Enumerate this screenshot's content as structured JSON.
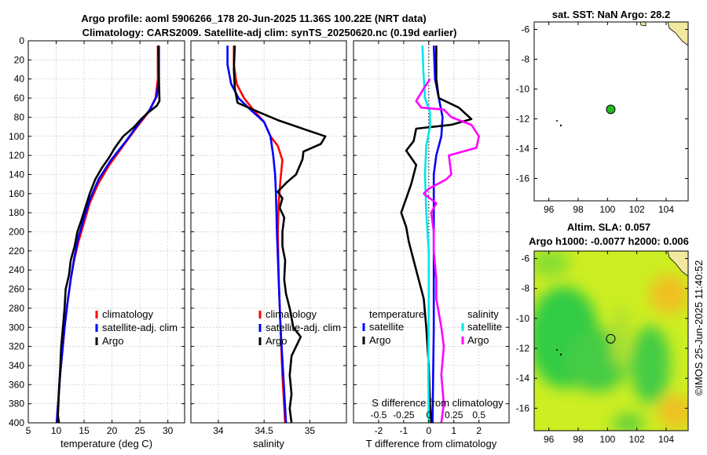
{
  "header": {
    "title_line1": "Argo profile: aoml 5906266_178 20-Jun-2025 11.36S 100.22E (NRT data)",
    "title_line2": "Climatology: CARS2009. Satellite-adj clim: synTS_20250620.nc (0.19d earlier)"
  },
  "colors": {
    "climatology": "#ff0000",
    "satellite": "#0000ff",
    "argo": "#000000",
    "salinity_satellite": "#00e5ee",
    "salinity_argo": "#ff00ff",
    "land": "#f0e8a0"
  },
  "chart_data": [
    {
      "id": "temperature",
      "type": "line",
      "xlabel": "temperature (deg C)",
      "ylabel": "",
      "xlim": [
        5,
        33
      ],
      "xticks": [
        5,
        10,
        15,
        20,
        25,
        30
      ],
      "ylim": [
        400,
        0
      ],
      "yticks": [
        0,
        20,
        40,
        60,
        80,
        100,
        120,
        140,
        160,
        180,
        200,
        220,
        240,
        260,
        280,
        300,
        320,
        340,
        360,
        380,
        400
      ],
      "legend": [
        "climatology",
        "satellite-adj. clim",
        "Argo"
      ],
      "series": [
        {
          "name": "climatology",
          "color": "#ff0000",
          "points": [
            [
              28.2,
              5
            ],
            [
              28.2,
              40
            ],
            [
              27.8,
              60
            ],
            [
              26.5,
              75
            ],
            [
              24.5,
              90
            ],
            [
              22,
              110
            ],
            [
              19.5,
              130
            ],
            [
              17.5,
              150
            ],
            [
              16,
              170
            ],
            [
              15,
              190
            ],
            [
              14,
              210
            ],
            [
              13.2,
              230
            ],
            [
              12.6,
              250
            ],
            [
              12,
              275
            ],
            [
              11.5,
              300
            ],
            [
              11.1,
              325
            ],
            [
              10.7,
              350
            ],
            [
              10.4,
              375
            ],
            [
              10.1,
              400
            ]
          ]
        },
        {
          "name": "satellite-adj. clim",
          "color": "#0000ff",
          "points": [
            [
              28.4,
              5
            ],
            [
              28.4,
              40
            ],
            [
              28,
              58
            ],
            [
              26.8,
              72
            ],
            [
              25,
              85
            ],
            [
              22.5,
              105
            ],
            [
              19.8,
              125
            ],
            [
              17.6,
              145
            ],
            [
              16.1,
              165
            ],
            [
              15,
              185
            ],
            [
              14,
              205
            ],
            [
              13.2,
              228
            ],
            [
              12.6,
              250
            ],
            [
              12,
              275
            ],
            [
              11.5,
              300
            ],
            [
              11.1,
              325
            ],
            [
              10.7,
              350
            ],
            [
              10.4,
              375
            ],
            [
              10.1,
              400
            ]
          ]
        },
        {
          "name": "Argo",
          "color": "#000000",
          "points": [
            [
              28.3,
              5
            ],
            [
              28.4,
              40
            ],
            [
              28.5,
              63
            ],
            [
              28,
              68
            ],
            [
              26.5,
              75
            ],
            [
              25.2,
              82
            ],
            [
              24,
              90
            ],
            [
              22,
              100
            ],
            [
              20.5,
              112
            ],
            [
              19.5,
              122
            ],
            [
              18.2,
              133
            ],
            [
              17,
              145
            ],
            [
              16,
              160
            ],
            [
              15.2,
              175
            ],
            [
              14.5,
              188
            ],
            [
              13.8,
              200
            ],
            [
              13.3,
              215
            ],
            [
              12.6,
              230
            ],
            [
              12.3,
              245
            ],
            [
              11.7,
              260
            ],
            [
              11.5,
              280
            ],
            [
              11.2,
              300
            ],
            [
              10.9,
              320
            ],
            [
              10.7,
              345
            ],
            [
              10.5,
              365
            ],
            [
              10.4,
              380
            ],
            [
              10.3,
              392
            ],
            [
              10.5,
              400
            ]
          ]
        }
      ]
    },
    {
      "id": "salinity",
      "type": "line",
      "xlabel": "salinity",
      "xlim": [
        33.7,
        35.4
      ],
      "xticks": [
        34,
        34.5,
        35
      ],
      "ylim": [
        400,
        0
      ],
      "legend": [
        "climatology",
        "satellite-adj. clim",
        "Argo"
      ],
      "series": [
        {
          "name": "climatology",
          "color": "#ff0000",
          "points": [
            [
              34.17,
              5
            ],
            [
              34.17,
              25
            ],
            [
              34.2,
              45
            ],
            [
              34.28,
              60
            ],
            [
              34.38,
              72
            ],
            [
              34.5,
              85
            ],
            [
              34.57,
              100
            ],
            [
              34.65,
              110
            ],
            [
              34.7,
              125
            ],
            [
              34.68,
              145
            ],
            [
              34.66,
              170
            ],
            [
              34.65,
              200
            ],
            [
              34.66,
              250
            ],
            [
              34.68,
              300
            ],
            [
              34.7,
              350
            ],
            [
              34.73,
              400
            ]
          ]
        },
        {
          "name": "satellite-adj. clim",
          "color": "#0000ff",
          "points": [
            [
              34.1,
              5
            ],
            [
              34.1,
              25
            ],
            [
              34.14,
              45
            ],
            [
              34.22,
              60
            ],
            [
              34.35,
              72
            ],
            [
              34.5,
              85
            ],
            [
              34.57,
              100
            ],
            [
              34.6,
              120
            ],
            [
              34.62,
              140
            ],
            [
              34.63,
              160
            ],
            [
              34.64,
              200
            ],
            [
              34.66,
              250
            ],
            [
              34.68,
              300
            ],
            [
              34.71,
              350
            ],
            [
              34.74,
              400
            ]
          ]
        },
        {
          "name": "Argo",
          "color": "#000000",
          "points": [
            [
              34.18,
              5
            ],
            [
              34.17,
              30
            ],
            [
              34.18,
              50
            ],
            [
              34.21,
              65
            ],
            [
              34.45,
              75
            ],
            [
              34.65,
              83
            ],
            [
              34.8,
              88
            ],
            [
              34.95,
              93
            ],
            [
              35.17,
              100
            ],
            [
              35.12,
              108
            ],
            [
              34.93,
              116
            ],
            [
              34.92,
              124
            ],
            [
              34.85,
              140
            ],
            [
              34.75,
              148
            ],
            [
              34.65,
              158
            ],
            [
              34.7,
              165
            ],
            [
              34.67,
              175
            ],
            [
              34.72,
              185
            ],
            [
              34.7,
              200
            ],
            [
              34.7,
              215
            ],
            [
              34.73,
              230
            ],
            [
              34.72,
              250
            ],
            [
              34.74,
              265
            ],
            [
              34.78,
              280
            ],
            [
              34.82,
              300
            ],
            [
              34.9,
              310
            ],
            [
              34.8,
              330
            ],
            [
              34.78,
              350
            ],
            [
              34.8,
              370
            ],
            [
              34.78,
              385
            ],
            [
              34.8,
              400
            ]
          ]
        }
      ]
    },
    {
      "id": "differences",
      "type": "line",
      "xlabel": "T difference from climatology",
      "xlabel_top": "S difference from climatology",
      "xlim": [
        -3,
        3.2
      ],
      "xticks": [
        -2,
        -1,
        0,
        1,
        2
      ],
      "xticks_top_labels": [
        "-0.5",
        "-0.25",
        "0",
        "0.25",
        "0.5"
      ],
      "xticks_top_positions_T": [
        -2,
        -1,
        0,
        1,
        2
      ],
      "ylim": [
        400,
        0
      ],
      "legend_temperature_title": "temperature",
      "legend_salinity_title": "salinity",
      "legend_left": [
        "satellite",
        "Argo"
      ],
      "legend_right": [
        "satellite",
        "Argo"
      ],
      "series": [
        {
          "name": "T satellite",
          "color": "#0000ff",
          "points": [
            [
              0.2,
              5
            ],
            [
              0.25,
              40
            ],
            [
              0.4,
              60
            ],
            [
              0.55,
              80
            ],
            [
              0.5,
              100
            ],
            [
              0.3,
              120
            ],
            [
              0.2,
              140
            ],
            [
              0.2,
              200
            ],
            [
              0.2,
              300
            ],
            [
              0.15,
              400
            ]
          ]
        },
        {
          "name": "T Argo",
          "color": "#000000",
          "points": [
            [
              0.3,
              5
            ],
            [
              0.3,
              40
            ],
            [
              0.4,
              60
            ],
            [
              1.2,
              70
            ],
            [
              1.7,
              82
            ],
            [
              0.9,
              88
            ],
            [
              -0.5,
              92
            ],
            [
              -0.6,
              105
            ],
            [
              -0.9,
              115
            ],
            [
              -0.5,
              130
            ],
            [
              -0.7,
              150
            ],
            [
              -0.9,
              165
            ],
            [
              -1.1,
              180
            ],
            [
              -0.9,
              195
            ],
            [
              -0.8,
              210
            ],
            [
              -0.6,
              230
            ],
            [
              -0.4,
              250
            ],
            [
              -0.2,
              270
            ],
            [
              -0.1,
              300
            ],
            [
              0,
              340
            ],
            [
              0.05,
              380
            ],
            [
              0.1,
              400
            ]
          ]
        },
        {
          "name": "S satellite",
          "color": "#00e5ee",
          "points": [
            [
              -0.25,
              5
            ],
            [
              -0.22,
              30
            ],
            [
              -0.15,
              60
            ],
            [
              0.05,
              75
            ],
            [
              0.05,
              90
            ],
            [
              -0.1,
              110
            ],
            [
              -0.15,
              140
            ],
            [
              -0.1,
              180
            ],
            [
              0,
              220
            ],
            [
              0,
              280
            ],
            [
              -0.02,
              340
            ],
            [
              0,
              400
            ]
          ]
        },
        {
          "name": "S Argo",
          "color": "#ff00ff",
          "points": [
            [
              0.05,
              40
            ],
            [
              -0.2,
              50
            ],
            [
              -0.5,
              63
            ],
            [
              -0.3,
              70
            ],
            [
              0.6,
              72
            ],
            [
              0.9,
              80
            ],
            [
              1.7,
              88
            ],
            [
              2,
              100
            ],
            [
              1.9,
              112
            ],
            [
              0.8,
              120
            ],
            [
              0.9,
              140
            ],
            [
              0.7,
              145
            ],
            [
              0,
              155
            ],
            [
              -0.2,
              160
            ],
            [
              0.3,
              170
            ],
            [
              0.1,
              180
            ],
            [
              0.2,
              200
            ],
            [
              0.2,
              220
            ],
            [
              0.3,
              250
            ],
            [
              0.3,
              270
            ],
            [
              0.5,
              300
            ],
            [
              0.6,
              320
            ],
            [
              0.5,
              350
            ],
            [
              0.6,
              380
            ],
            [
              0.5,
              400
            ]
          ]
        }
      ]
    }
  ],
  "sst_map": {
    "title": "sat. SST: NaN Argo: 28.2",
    "xlim": [
      95,
      105.5
    ],
    "ylim": [
      -17.5,
      -5.5
    ],
    "xticks": [
      96,
      98,
      100,
      102,
      104
    ],
    "yticks": [
      -6,
      -8,
      -10,
      -12,
      -14,
      -16
    ],
    "argo_lon": 100.22,
    "argo_lat": -11.36,
    "marker_color": "#22bb22"
  },
  "sla_map": {
    "title_line1": "Altim. SLA: 0.057",
    "title_line2": "Argo h1000: -0.0077 h2000: 0.006",
    "xlim": [
      95,
      105.5
    ],
    "ylim": [
      -17.5,
      -5.5
    ],
    "xticks": [
      96,
      98,
      100,
      102,
      104
    ],
    "yticks": [
      -6,
      -8,
      -10,
      -12,
      -14,
      -16
    ],
    "argo_lon": 100.22,
    "argo_lat": -11.36
  },
  "footer": {
    "credit": "©IMOS 25-Jun-2025 11:40:52"
  }
}
